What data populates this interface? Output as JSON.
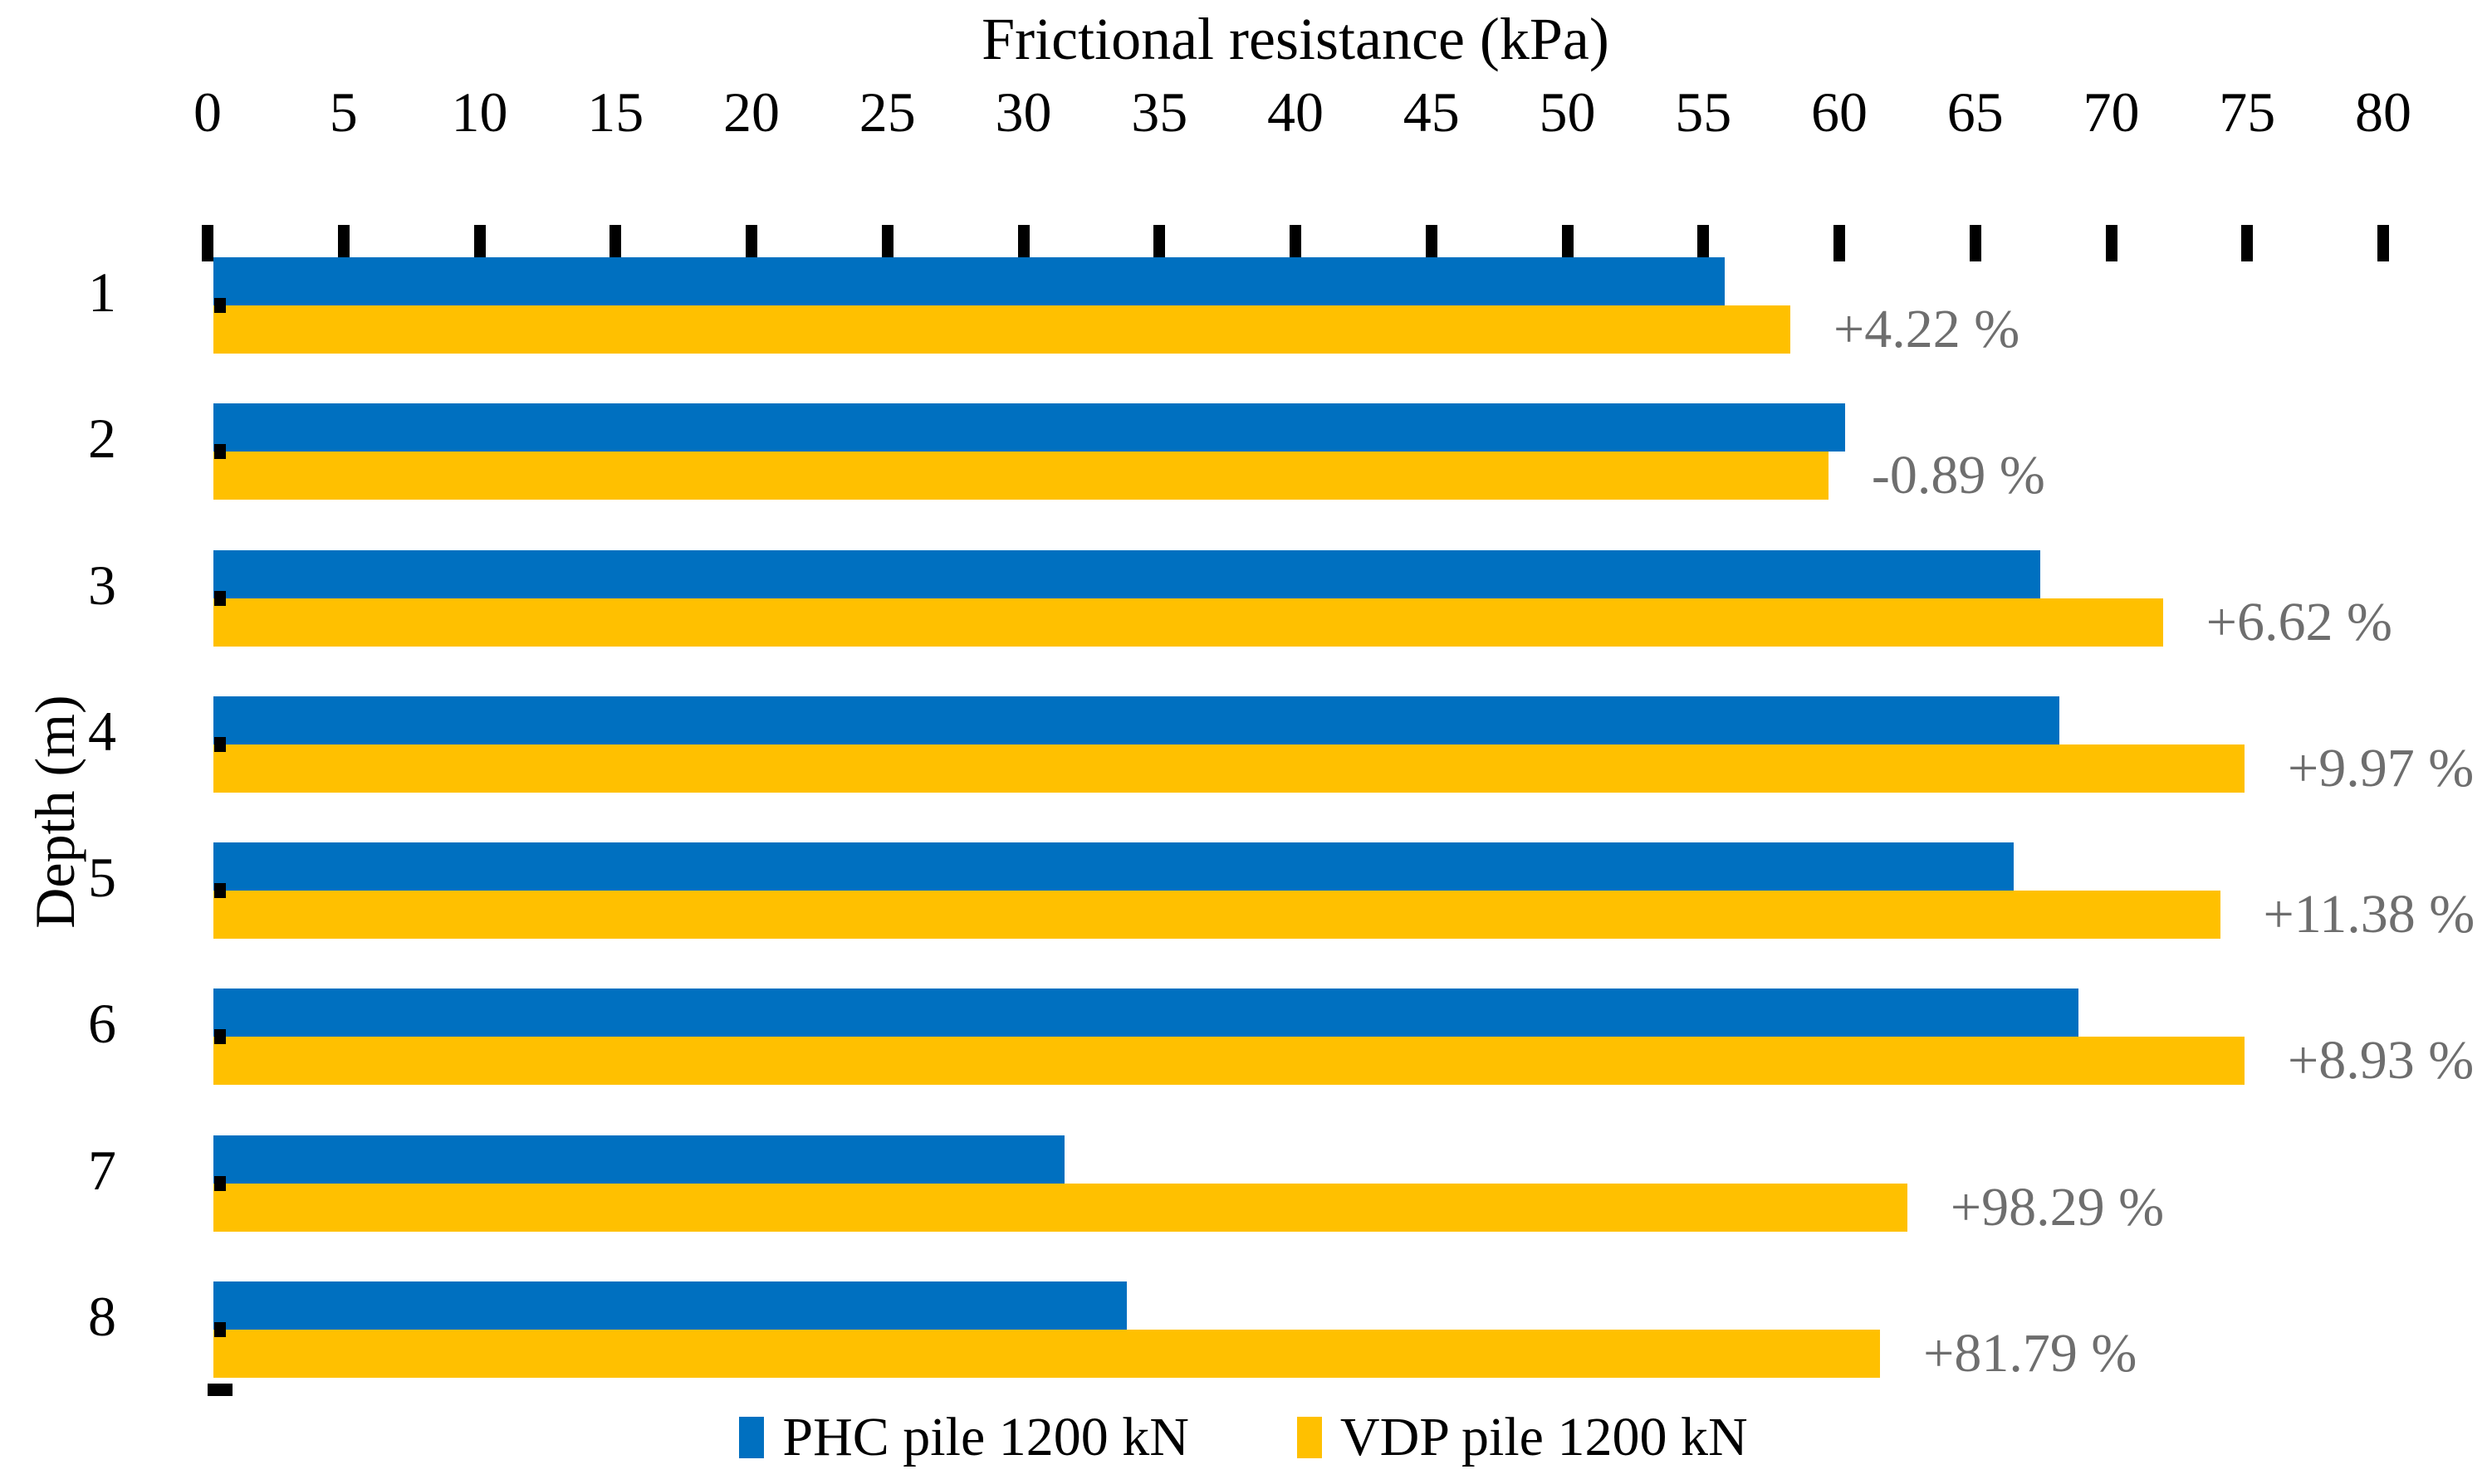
{
  "chart_data": {
    "type": "bar",
    "orientation": "horizontal",
    "title": "Frictional resistance (kPa)",
    "xlabel": "Frictional resistance (kPa)",
    "ylabel": "Depth (m)",
    "categories": [
      "1",
      "2",
      "3",
      "4",
      "5",
      "6",
      "7",
      "8"
    ],
    "series": [
      {
        "name": "PHC pile 1200 kN",
        "color": "#0070C0",
        "values": [
          55.8,
          60.2,
          67.4,
          68.1,
          66.4,
          68.8,
          31.5,
          33.8
        ]
      },
      {
        "name": "VDP pile 1200 kN",
        "color": "#FFC000",
        "values": [
          58.2,
          59.6,
          71.9,
          74.9,
          74.0,
          74.9,
          62.5,
          61.5
        ]
      }
    ],
    "annotations": [
      "+4.22 %",
      "-0.89 %",
      "+6.62 %",
      "+9.97 %",
      "+11.38 %",
      "+8.93 %",
      "+98.29 %",
      "+81.79 %"
    ],
    "annotation_color": "#6E6E6E",
    "xlim": [
      0,
      80
    ],
    "xticks": [
      0,
      5,
      10,
      15,
      20,
      25,
      30,
      35,
      40,
      45,
      50,
      55,
      60,
      65,
      70,
      75,
      80
    ],
    "grid": false,
    "legend_position": "bottom"
  }
}
